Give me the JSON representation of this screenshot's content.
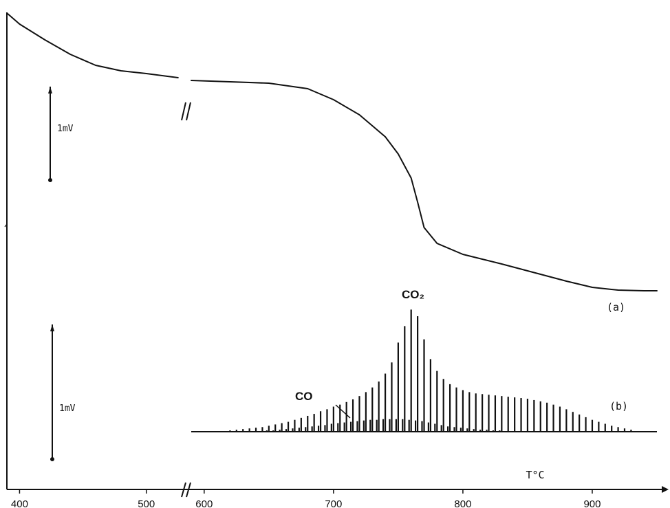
{
  "chart_data": {
    "type": "line",
    "x_unit_label": "T°C",
    "x_ticks": [
      400,
      500,
      600,
      700,
      800,
      900
    ],
    "x_break": {
      "left_segment": [
        390,
        530
      ],
      "right_segment": [
        590,
        950
      ]
    },
    "scale_bars": [
      {
        "curve": "(a)",
        "label": "1mV"
      },
      {
        "curve": "(b)",
        "label": "1mV"
      }
    ],
    "series": [
      {
        "name": "(a)",
        "points": [
          [
            390,
            720
          ],
          [
            400,
            704
          ],
          [
            420,
            681
          ],
          [
            440,
            660
          ],
          [
            460,
            644
          ],
          [
            480,
            636
          ],
          [
            500,
            632
          ],
          [
            525,
            626
          ],
          [
            590,
            622
          ],
          [
            620,
            620
          ],
          [
            650,
            618
          ],
          [
            680,
            610
          ],
          [
            700,
            594
          ],
          [
            720,
            572
          ],
          [
            740,
            540
          ],
          [
            750,
            515
          ],
          [
            760,
            480
          ],
          [
            765,
            445
          ],
          [
            770,
            408
          ],
          [
            780,
            385
          ],
          [
            800,
            369
          ],
          [
            830,
            355
          ],
          [
            860,
            340
          ],
          [
            880,
            330
          ],
          [
            900,
            321
          ],
          [
            920,
            317
          ],
          [
            940,
            316
          ],
          [
            950,
            316
          ]
        ]
      },
      {
        "name": "(b)",
        "species_labels": [
          "CO",
          "CO₂"
        ],
        "peak_label": "CO₂",
        "shoulder_label": "CO",
        "pulse_temperatures": [
          620,
          625,
          630,
          635,
          640,
          645,
          650,
          655,
          660,
          665,
          670,
          675,
          680,
          685,
          690,
          695,
          700,
          705,
          710,
          715,
          720,
          725,
          730,
          735,
          740,
          745,
          750,
          755,
          760,
          765,
          770,
          775,
          780,
          785,
          790,
          795,
          800,
          805,
          810,
          815,
          820,
          825,
          830,
          835,
          840,
          845,
          850,
          855,
          860,
          865,
          870,
          875,
          880,
          885,
          890,
          895,
          900,
          905,
          910,
          915,
          920,
          925,
          930
        ],
        "co2_heights": [
          0.02,
          0.03,
          0.04,
          0.05,
          0.06,
          0.07,
          0.09,
          0.11,
          0.13,
          0.15,
          0.18,
          0.21,
          0.24,
          0.27,
          0.31,
          0.34,
          0.38,
          0.41,
          0.45,
          0.49,
          0.54,
          0.6,
          0.67,
          0.76,
          0.88,
          1.05,
          1.35,
          1.6,
          1.85,
          1.75,
          1.4,
          1.1,
          0.92,
          0.8,
          0.72,
          0.67,
          0.63,
          0.6,
          0.58,
          0.57,
          0.56,
          0.55,
          0.54,
          0.53,
          0.52,
          0.51,
          0.5,
          0.48,
          0.46,
          0.44,
          0.41,
          0.38,
          0.34,
          0.3,
          0.26,
          0.22,
          0.18,
          0.15,
          0.12,
          0.09,
          0.07,
          0.05,
          0.03
        ],
        "co_heights": [
          0.0,
          0.0,
          0.0,
          0.01,
          0.01,
          0.01,
          0.02,
          0.02,
          0.03,
          0.04,
          0.05,
          0.06,
          0.07,
          0.08,
          0.09,
          0.1,
          0.12,
          0.13,
          0.14,
          0.15,
          0.16,
          0.17,
          0.18,
          0.18,
          0.19,
          0.19,
          0.19,
          0.19,
          0.18,
          0.17,
          0.16,
          0.14,
          0.12,
          0.1,
          0.08,
          0.07,
          0.06,
          0.05,
          0.04,
          0.03,
          0.03,
          0.02,
          0.02,
          0.01,
          0.01,
          0.01,
          0.0,
          0.0,
          0.0,
          0.0,
          0.0,
          0.0,
          0.0,
          0.0,
          0.0,
          0.0,
          0.0,
          0.0,
          0.0,
          0.0,
          0.0,
          0.0,
          0.0
        ]
      }
    ]
  }
}
